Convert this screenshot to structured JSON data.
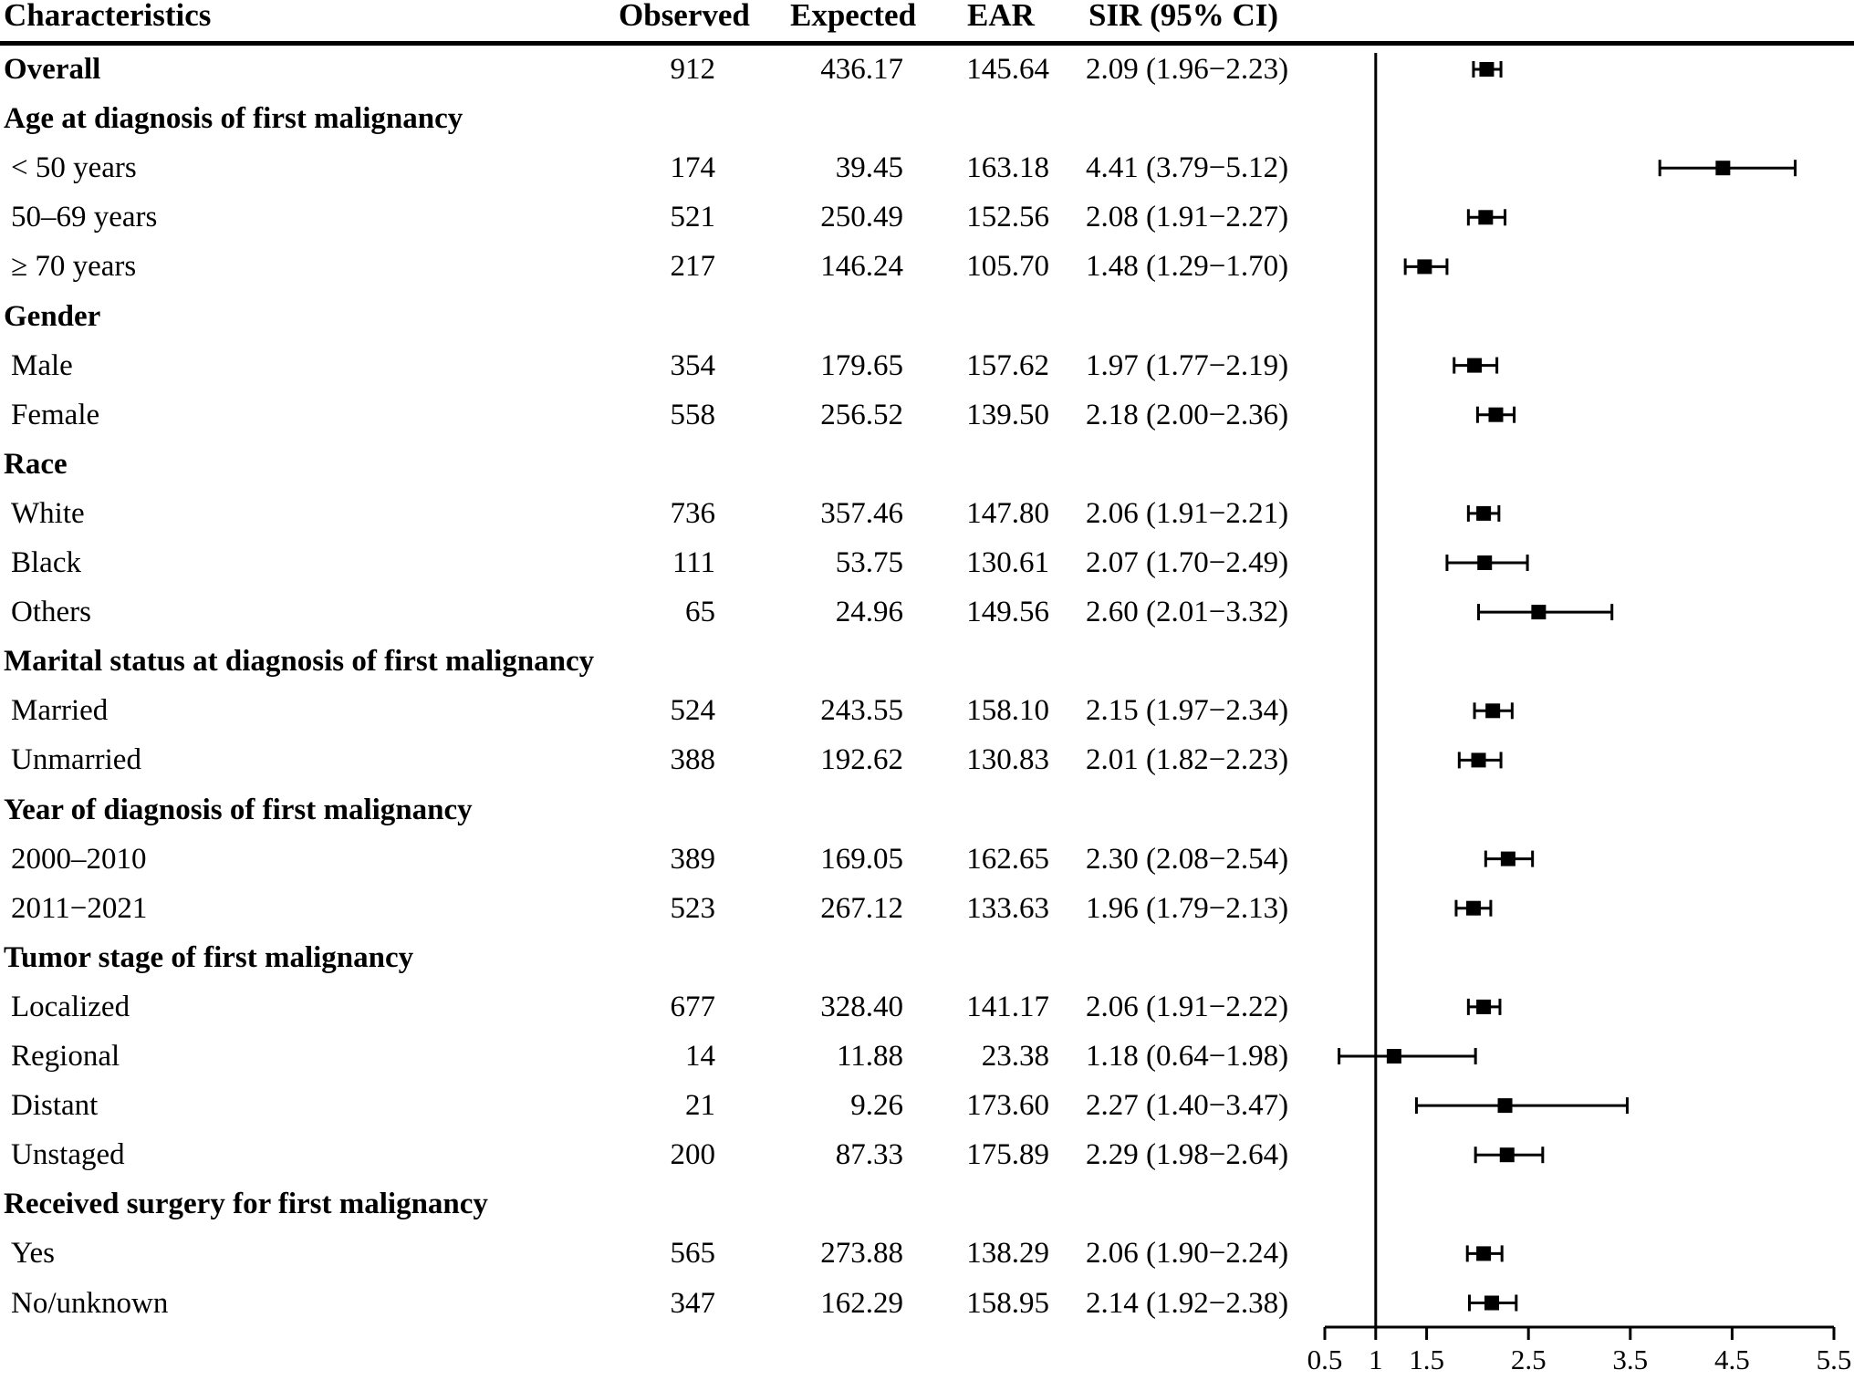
{
  "chart_data": {
    "type": "forest",
    "title": "",
    "xlabel": "",
    "columns": {
      "characteristics": "Characteristics",
      "observed": "Observed",
      "expected": "Expected",
      "ear": "EAR",
      "sir": "SIR (95% CI)"
    },
    "reference_line": 1,
    "xlim": [
      0.5,
      5.5
    ],
    "x_ticks": [
      {
        "value": 0.5,
        "label": "0.5"
      },
      {
        "value": 1,
        "label": "1"
      },
      {
        "value": 1.5,
        "label": "1.5"
      },
      {
        "value": 2.5,
        "label": "2.5"
      },
      {
        "value": 3.5,
        "label": "3.5"
      },
      {
        "value": 4.5,
        "label": "4.5"
      },
      {
        "value": 5.5,
        "label": "5.5"
      }
    ],
    "rows": [
      {
        "label": "Overall",
        "kind": "header",
        "observed": "912",
        "expected": "436.17",
        "ear": "145.64",
        "sir_text": "2.09 (1.96−2.23)",
        "sir": 2.09,
        "lo": 1.96,
        "hi": 2.23
      },
      {
        "label": "Age at diagnosis of first malignancy",
        "kind": "header"
      },
      {
        "label": "< 50 years",
        "kind": "item",
        "observed": "174",
        "expected": "39.45",
        "ear": "163.18",
        "sir_text": "4.41 (3.79−5.12)",
        "sir": 4.41,
        "lo": 3.79,
        "hi": 5.12
      },
      {
        "label": "50–69 years",
        "kind": "item",
        "observed": "521",
        "expected": "250.49",
        "ear": "152.56",
        "sir_text": "2.08 (1.91−2.27)",
        "sir": 2.08,
        "lo": 1.91,
        "hi": 2.27
      },
      {
        "label": "≥ 70 years",
        "kind": "item",
        "observed": "217",
        "expected": "146.24",
        "ear": "105.70",
        "sir_text": "1.48 (1.29−1.70)",
        "sir": 1.48,
        "lo": 1.29,
        "hi": 1.7
      },
      {
        "label": "Gender",
        "kind": "header"
      },
      {
        "label": "Male",
        "kind": "item",
        "observed": "354",
        "expected": "179.65",
        "ear": "157.62",
        "sir_text": "1.97 (1.77−2.19)",
        "sir": 1.97,
        "lo": 1.77,
        "hi": 2.19
      },
      {
        "label": "Female",
        "kind": "item",
        "observed": "558",
        "expected": "256.52",
        "ear": "139.50",
        "sir_text": "2.18 (2.00−2.36)",
        "sir": 2.18,
        "lo": 2.0,
        "hi": 2.36
      },
      {
        "label": "Race",
        "kind": "header"
      },
      {
        "label": "White",
        "kind": "item",
        "observed": "736",
        "expected": "357.46",
        "ear": "147.80",
        "sir_text": "2.06 (1.91−2.21)",
        "sir": 2.06,
        "lo": 1.91,
        "hi": 2.21
      },
      {
        "label": "Black",
        "kind": "item",
        "observed": "111",
        "expected": "53.75",
        "ear": "130.61",
        "sir_text": "2.07 (1.70−2.49)",
        "sir": 2.07,
        "lo": 1.7,
        "hi": 2.49
      },
      {
        "label": "Others",
        "kind": "item",
        "observed": "65",
        "expected": "24.96",
        "ear": "149.56",
        "sir_text": "2.60 (2.01−3.32)",
        "sir": 2.6,
        "lo": 2.01,
        "hi": 3.32
      },
      {
        "label": "Marital status at diagnosis of first malignancy",
        "kind": "header"
      },
      {
        "label": "Married",
        "kind": "item",
        "observed": "524",
        "expected": "243.55",
        "ear": "158.10",
        "sir_text": "2.15 (1.97−2.34)",
        "sir": 2.15,
        "lo": 1.97,
        "hi": 2.34
      },
      {
        "label": "Unmarried",
        "kind": "item",
        "observed": "388",
        "expected": "192.62",
        "ear": "130.83",
        "sir_text": "2.01 (1.82−2.23)",
        "sir": 2.01,
        "lo": 1.82,
        "hi": 2.23
      },
      {
        "label": "Year of diagnosis of first malignancy",
        "kind": "header"
      },
      {
        "label": "2000–2010",
        "kind": "item",
        "observed": "389",
        "expected": "169.05",
        "ear": "162.65",
        "sir_text": "2.30 (2.08−2.54)",
        "sir": 2.3,
        "lo": 2.08,
        "hi": 2.54
      },
      {
        "label": "2011−2021",
        "kind": "item",
        "observed": "523",
        "expected": "267.12",
        "ear": "133.63",
        "sir_text": "1.96 (1.79−2.13)",
        "sir": 1.96,
        "lo": 1.79,
        "hi": 2.13
      },
      {
        "label": "Tumor stage of first malignancy",
        "kind": "header"
      },
      {
        "label": "Localized",
        "kind": "item",
        "observed": "677",
        "expected": "328.40",
        "ear": "141.17",
        "sir_text": "2.06 (1.91−2.22)",
        "sir": 2.06,
        "lo": 1.91,
        "hi": 2.22
      },
      {
        "label": "Regional",
        "kind": "item",
        "observed": "14",
        "expected": "11.88",
        "ear": "23.38",
        "sir_text": "1.18 (0.64−1.98)",
        "sir": 1.18,
        "lo": 0.64,
        "hi": 1.98
      },
      {
        "label": "Distant",
        "kind": "item",
        "observed": "21",
        "expected": "9.26",
        "ear": "173.60",
        "sir_text": "2.27 (1.40−3.47)",
        "sir": 2.27,
        "lo": 1.4,
        "hi": 3.47
      },
      {
        "label": "Unstaged",
        "kind": "item",
        "observed": "200",
        "expected": "87.33",
        "ear": "175.89",
        "sir_text": "2.29 (1.98−2.64)",
        "sir": 2.29,
        "lo": 1.98,
        "hi": 2.64
      },
      {
        "label": "Received surgery for first malignancy",
        "kind": "header"
      },
      {
        "label": "Yes",
        "kind": "item",
        "observed": "565",
        "expected": "273.88",
        "ear": "138.29",
        "sir_text": "2.06 (1.90−2.24)",
        "sir": 2.06,
        "lo": 1.9,
        "hi": 2.24
      },
      {
        "label": "No/unknown",
        "kind": "item",
        "observed": "347",
        "expected": "162.29",
        "ear": "158.95",
        "sir_text": "2.14 (1.92−2.38)",
        "sir": 2.14,
        "lo": 1.92,
        "hi": 2.38
      }
    ]
  }
}
